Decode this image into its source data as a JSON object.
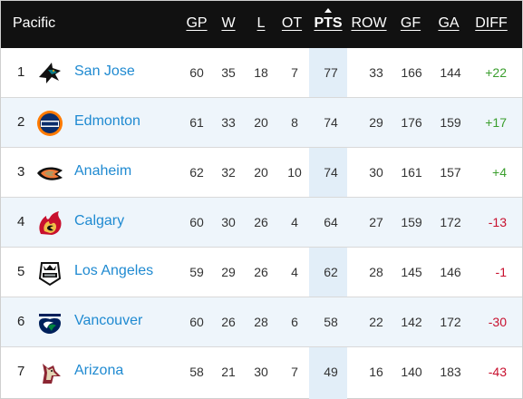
{
  "division": "Pacific",
  "columns": {
    "gp": "GP",
    "w": "W",
    "l": "L",
    "ot": "OT",
    "pts": "PTS",
    "row": "ROW",
    "gf": "GF",
    "ga": "GA",
    "diff": "DIFF"
  },
  "sorted_column": "pts",
  "colors": {
    "positive": "#3a9e2d",
    "negative": "#c8102e",
    "link": "#1f8ad1",
    "header_bg": "#111111",
    "pts_highlight": "#e2eef8"
  },
  "teams": [
    {
      "rank": "1",
      "name": "San Jose",
      "logo_icon": "sharks-logo-icon",
      "gp": "60",
      "w": "35",
      "l": "18",
      "ot": "7",
      "pts": "77",
      "row": "33",
      "gf": "166",
      "ga": "144",
      "diff": "+22"
    },
    {
      "rank": "2",
      "name": "Edmonton",
      "logo_icon": "oilers-logo-icon",
      "gp": "61",
      "w": "33",
      "l": "20",
      "ot": "8",
      "pts": "74",
      "row": "29",
      "gf": "176",
      "ga": "159",
      "diff": "+17"
    },
    {
      "rank": "3",
      "name": "Anaheim",
      "logo_icon": "ducks-logo-icon",
      "gp": "62",
      "w": "32",
      "l": "20",
      "ot": "10",
      "pts": "74",
      "row": "30",
      "gf": "161",
      "ga": "157",
      "diff": "+4"
    },
    {
      "rank": "4",
      "name": "Calgary",
      "logo_icon": "flames-logo-icon",
      "gp": "60",
      "w": "30",
      "l": "26",
      "ot": "4",
      "pts": "64",
      "row": "27",
      "gf": "159",
      "ga": "172",
      "diff": "-13"
    },
    {
      "rank": "5",
      "name": "Los Angeles",
      "logo_icon": "kings-logo-icon",
      "gp": "59",
      "w": "29",
      "l": "26",
      "ot": "4",
      "pts": "62",
      "row": "28",
      "gf": "145",
      "ga": "146",
      "diff": "-1"
    },
    {
      "rank": "6",
      "name": "Vancouver",
      "logo_icon": "canucks-logo-icon",
      "gp": "60",
      "w": "26",
      "l": "28",
      "ot": "6",
      "pts": "58",
      "row": "22",
      "gf": "142",
      "ga": "172",
      "diff": "-30"
    },
    {
      "rank": "7",
      "name": "Arizona",
      "logo_icon": "coyotes-logo-icon",
      "gp": "58",
      "w": "21",
      "l": "30",
      "ot": "7",
      "pts": "49",
      "row": "16",
      "gf": "140",
      "ga": "183",
      "diff": "-43"
    }
  ]
}
